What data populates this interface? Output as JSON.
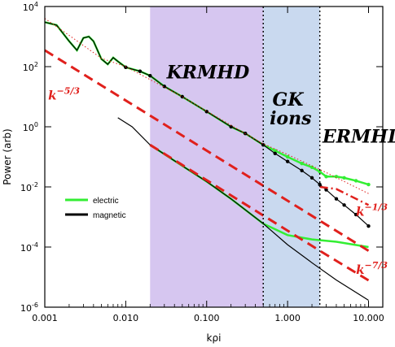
{
  "chart_data": {
    "type": "line",
    "xlabel": "kρi",
    "ylabel": "Power (arb)",
    "xscale": "log",
    "yscale": "log",
    "xlim": [
      0.001,
      15.0
    ],
    "ylim": [
      1e-06,
      10000
    ],
    "xticks": [
      {
        "value": 0.001,
        "label": "0.001"
      },
      {
        "value": 0.01,
        "label": "0.010"
      },
      {
        "value": 0.1,
        "label": "0.100"
      },
      {
        "value": 1.0,
        "label": "1.000"
      },
      {
        "value": 10.0,
        "label": "10.000"
      }
    ],
    "yticks": [
      {
        "value": 1e-06,
        "base": "10",
        "exp": "-6"
      },
      {
        "value": 0.0001,
        "base": "10",
        "exp": "-4"
      },
      {
        "value": 0.01,
        "base": "10",
        "exp": "-2"
      },
      {
        "value": 1,
        "base": "10",
        "exp": "0"
      },
      {
        "value": 100,
        "base": "10",
        "exp": "2"
      },
      {
        "value": 10000,
        "base": "10",
        "exp": "4"
      }
    ],
    "regions": [
      {
        "name": "KRMHD",
        "x_range": [
          0.02,
          0.5
        ],
        "color": "#d6c6f0"
      },
      {
        "name": "GK ions",
        "x_range": [
          0.5,
          2.5
        ],
        "color": "#c9d9ef"
      },
      {
        "name": "ERMHD",
        "x_range": [
          2.5,
          15.0
        ],
        "color": "#ffffff"
      }
    ],
    "region_labels": [
      {
        "text": "KRMHD",
        "x": 0.032,
        "y": 40
      },
      {
        "text": "GK",
        "x": 0.65,
        "y": 5
      },
      {
        "text": "ions",
        "x": 0.6,
        "y": 1.2
      },
      {
        "text": "ERMHD",
        "x": 2.7,
        "y": 0.3
      }
    ],
    "boundaries": [
      0.5,
      2.5
    ],
    "slope_labels": [
      {
        "text": "k",
        "exp": "−5/3",
        "x": 0.0011,
        "y": 8
      },
      {
        "text": "k",
        "exp": "−1/3",
        "x": 7.0,
        "y": 0.0011
      },
      {
        "text": "k",
        "exp": "−7/3",
        "x": 7.0,
        "y": 1.3e-05
      }
    ],
    "series": [
      {
        "name": "electric",
        "color": "#33ee33",
        "points": [
          [
            0.001,
            3000
          ],
          [
            0.0014,
            2400
          ],
          [
            0.002,
            700
          ],
          [
            0.0025,
            350
          ],
          [
            0.003,
            900
          ],
          [
            0.0035,
            1000
          ],
          [
            0.004,
            700
          ],
          [
            0.005,
            180
          ],
          [
            0.006,
            120
          ],
          [
            0.007,
            200
          ],
          [
            0.008,
            150
          ],
          [
            0.01,
            95
          ],
          [
            0.015,
            70
          ],
          [
            0.02,
            50
          ],
          [
            0.03,
            22
          ],
          [
            0.05,
            10
          ],
          [
            0.1,
            3.2
          ],
          [
            0.2,
            1.0
          ],
          [
            0.3,
            0.6
          ],
          [
            0.5,
            0.25
          ],
          [
            0.7,
            0.16
          ],
          [
            1.0,
            0.1
          ],
          [
            1.5,
            0.06
          ],
          [
            2.0,
            0.045
          ],
          [
            2.5,
            0.032
          ],
          [
            3.0,
            0.022
          ],
          [
            4.0,
            0.022
          ],
          [
            5.0,
            0.02
          ],
          [
            7.0,
            0.016
          ],
          [
            10.0,
            0.012
          ]
        ]
      },
      {
        "name": "magnetic",
        "color": "#000000",
        "points": [
          [
            0.001,
            3000
          ],
          [
            0.0014,
            2400
          ],
          [
            0.002,
            700
          ],
          [
            0.0025,
            350
          ],
          [
            0.003,
            900
          ],
          [
            0.0035,
            1000
          ],
          [
            0.004,
            700
          ],
          [
            0.005,
            180
          ],
          [
            0.006,
            120
          ],
          [
            0.007,
            200
          ],
          [
            0.008,
            150
          ],
          [
            0.01,
            95
          ],
          [
            0.015,
            70
          ],
          [
            0.02,
            50
          ],
          [
            0.03,
            22
          ],
          [
            0.05,
            10
          ],
          [
            0.1,
            3.2
          ],
          [
            0.2,
            1.0
          ],
          [
            0.3,
            0.6
          ],
          [
            0.5,
            0.25
          ],
          [
            0.7,
            0.13
          ],
          [
            1.0,
            0.07
          ],
          [
            1.5,
            0.035
          ],
          [
            2.0,
            0.02
          ],
          [
            2.5,
            0.012
          ],
          [
            3.0,
            0.008
          ],
          [
            4.0,
            0.004
          ],
          [
            5.0,
            0.0025
          ],
          [
            7.0,
            0.0012
          ],
          [
            10.0,
            0.0005
          ]
        ]
      },
      {
        "name": "electric-lower",
        "color": "#33ee33",
        "points": [
          [
            0.02,
            0.25
          ],
          [
            0.05,
            0.05
          ],
          [
            0.1,
            0.015
          ],
          [
            0.2,
            0.004
          ],
          [
            0.5,
            0.0006
          ],
          [
            1.0,
            0.00025
          ],
          [
            2.0,
            0.00018
          ],
          [
            4.0,
            0.00015
          ],
          [
            10.0,
            0.0001
          ]
        ]
      },
      {
        "name": "magnetic-lower",
        "color": "#000000",
        "points": [
          [
            0.008,
            2.0
          ],
          [
            0.012,
            1.0
          ],
          [
            0.02,
            0.25
          ],
          [
            0.05,
            0.05
          ],
          [
            0.1,
            0.015
          ],
          [
            0.2,
            0.004
          ],
          [
            0.5,
            0.0006
          ],
          [
            1.0,
            0.00012
          ],
          [
            2.0,
            3e-05
          ],
          [
            4.0,
            8e-06
          ],
          [
            10.0,
            1.7e-06
          ]
        ]
      },
      {
        "name": "fit-red-upper",
        "color": "#e0201c",
        "style": "dotted",
        "points": [
          [
            0.001,
            4000
          ],
          [
            0.002,
            1100
          ],
          [
            0.005,
            190
          ],
          [
            0.01,
            100
          ],
          [
            0.05,
            10
          ],
          [
            0.1,
            3.3
          ],
          [
            0.5,
            0.27
          ],
          [
            1.0,
            0.12
          ],
          [
            3.0,
            0.03
          ],
          [
            10.0,
            0.006
          ]
        ]
      },
      {
        "name": "slope-k-5/3",
        "color": "#e0201c",
        "style": "dashed",
        "points": [
          [
            0.001,
            350
          ],
          [
            0.5,
            0.011
          ],
          [
            10.0,
            7.5e-05
          ]
        ]
      },
      {
        "name": "slope-k-5/3-lower",
        "color": "#e0201c",
        "style": "dashed",
        "points": [
          [
            0.02,
            0.25
          ],
          [
            2.5,
            7.5e-05
          ],
          [
            10.0,
            7.8e-06
          ]
        ]
      },
      {
        "name": "slope-k-1/3",
        "color": "#e0201c",
        "style": "dashdot",
        "points": [
          [
            2.5,
            0.01
          ],
          [
            4.0,
            0.0085
          ],
          [
            10.0,
            0.0025
          ]
        ]
      }
    ],
    "legend": {
      "placement": "lower-left",
      "entries": [
        {
          "label": "electric",
          "color": "#33ee33"
        },
        {
          "label": "magnetic",
          "color": "#000000"
        }
      ]
    }
  }
}
